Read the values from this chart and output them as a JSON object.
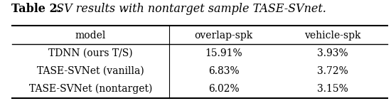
{
  "title_bold": "Table 2.",
  "title_italic": " SV results with nontarget sample TASE-SVnet.",
  "columns": [
    "model",
    "overlap-spk",
    "vehicle-spk"
  ],
  "rows": [
    [
      "TDNN (ours T/S)",
      "15.91%",
      "3.93%"
    ],
    [
      "TASE-SVNet (vanilla)",
      "6.83%",
      "3.72%"
    ],
    [
      "TASE-SVNet (nontarget)",
      "6.02%",
      "3.15%"
    ]
  ],
  "bg_color": "#ffffff",
  "text_color": "#000000",
  "font_size": 10.0,
  "title_font_size": 11.5,
  "header_font_size": 10.0
}
